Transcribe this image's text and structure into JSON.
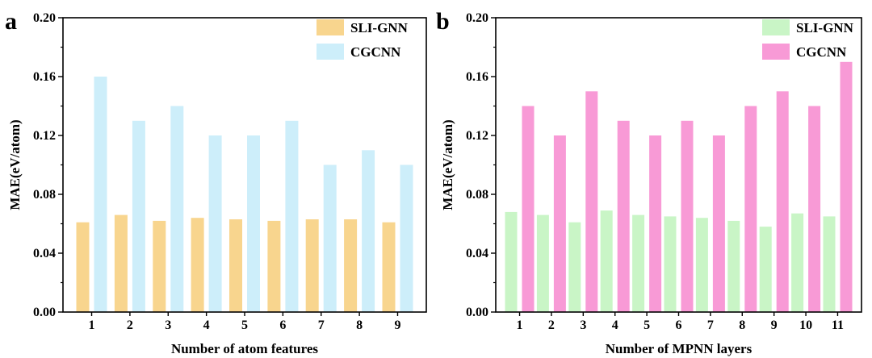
{
  "chart_data": [
    {
      "type": "bar",
      "panel_label": "a",
      "xlabel": "Number of atom features",
      "ylabel": "MAE(eV/atom)",
      "ylim": [
        0,
        0.2
      ],
      "yticks": [
        "0.00",
        "0.04",
        "0.08",
        "0.12",
        "0.16",
        "0.20"
      ],
      "categories": [
        "1",
        "2",
        "3",
        "4",
        "5",
        "6",
        "7",
        "8",
        "9"
      ],
      "legend_position": "top-right",
      "grid": false,
      "series": [
        {
          "name": "SLI-GNN",
          "color": "#f8d58e",
          "values": [
            0.061,
            0.066,
            0.062,
            0.064,
            0.063,
            0.062,
            0.063,
            0.063,
            0.061
          ]
        },
        {
          "name": "CGCNN",
          "color": "#cdeefa",
          "values": [
            0.16,
            0.13,
            0.14,
            0.12,
            0.12,
            0.13,
            0.1,
            0.11,
            0.1
          ]
        }
      ]
    },
    {
      "type": "bar",
      "panel_label": "b",
      "xlabel": "Number of MPNN layers",
      "ylabel": "MAE(eV/atom)",
      "ylim": [
        0,
        0.2
      ],
      "yticks": [
        "0.00",
        "0.04",
        "0.08",
        "0.12",
        "0.16",
        "0.20"
      ],
      "categories": [
        "1",
        "2",
        "3",
        "4",
        "5",
        "6",
        "7",
        "8",
        "9",
        "10",
        "11"
      ],
      "legend_position": "top-right",
      "grid": false,
      "series": [
        {
          "name": "SLI-GNN",
          "color": "#c9f5c6",
          "values": [
            0.068,
            0.066,
            0.061,
            0.069,
            0.066,
            0.065,
            0.064,
            0.062,
            0.058,
            0.067,
            0.065
          ]
        },
        {
          "name": "CGCNN",
          "color": "#f89ad6",
          "values": [
            0.14,
            0.12,
            0.15,
            0.13,
            0.12,
            0.13,
            0.12,
            0.14,
            0.15,
            0.14,
            0.17
          ]
        }
      ]
    }
  ]
}
